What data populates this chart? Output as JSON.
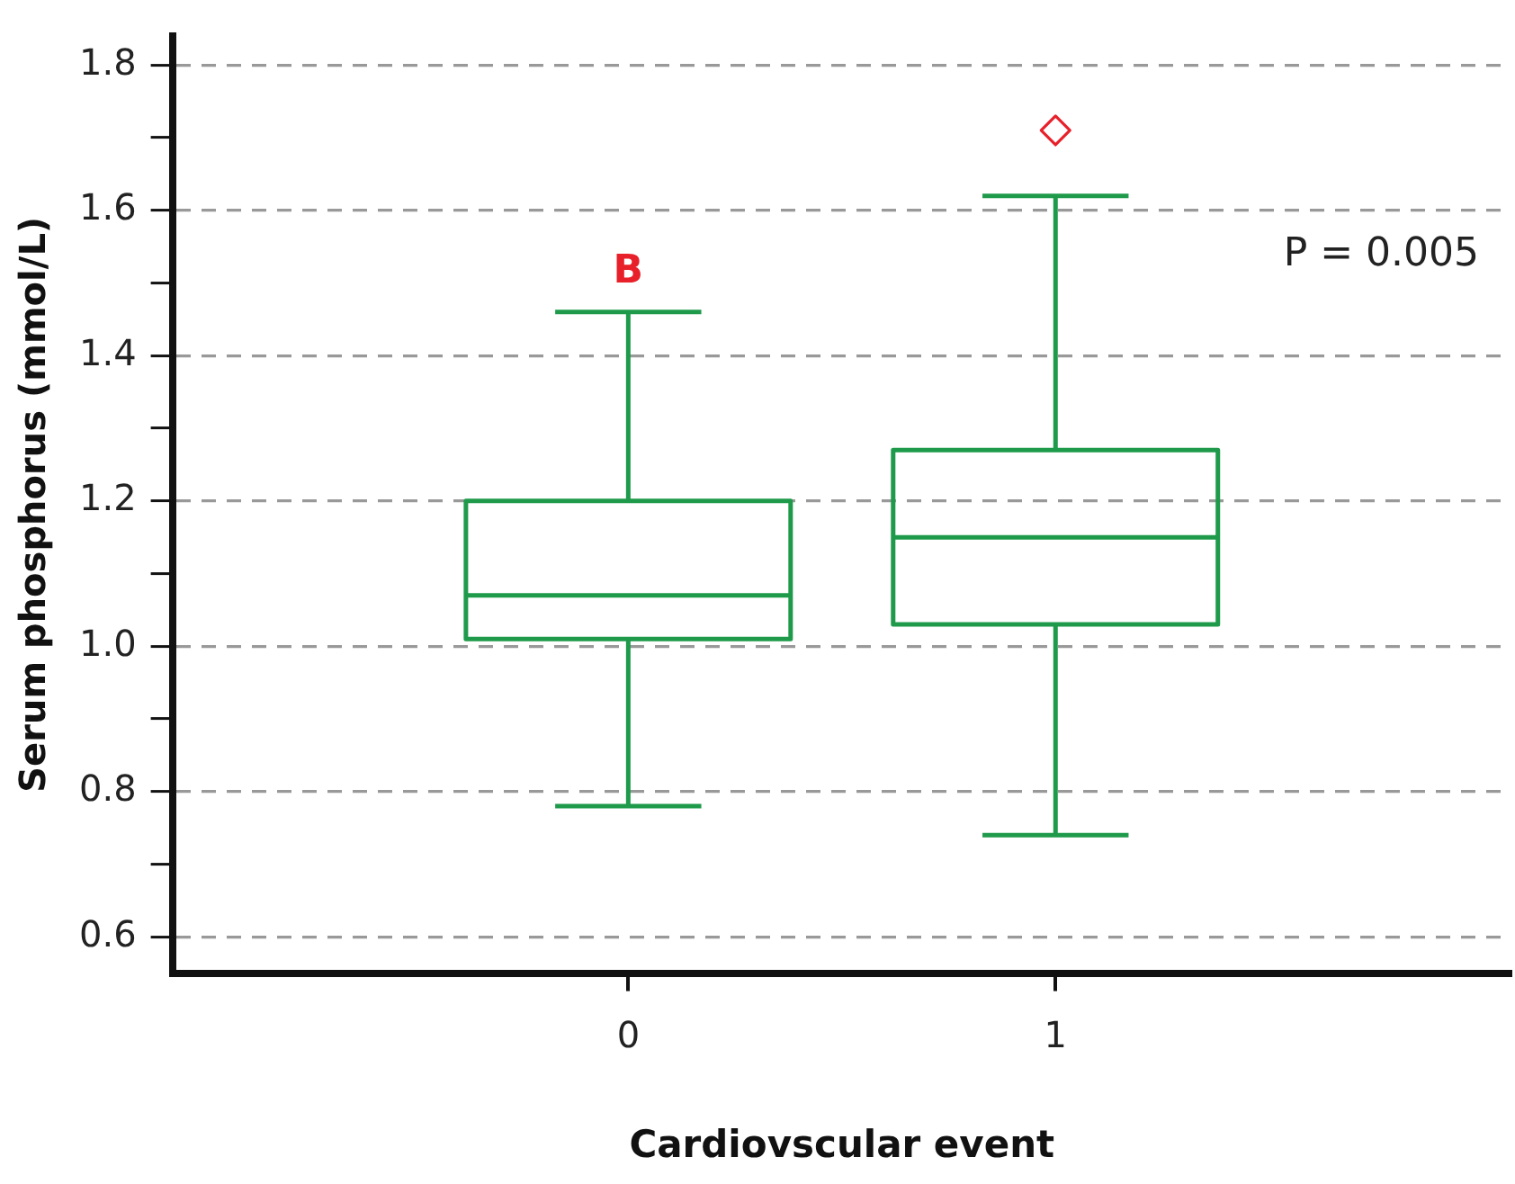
{
  "chart_data": {
    "type": "box",
    "xlabel": "Cardiovscular event",
    "ylabel": "Serum phosphorus (mmol/L)",
    "categories": [
      "0",
      "1"
    ],
    "series": [
      {
        "color": "#1e9a4a",
        "boxes": [
          {
            "low": 0.78,
            "q1": 1.01,
            "median": 1.07,
            "q3": 1.2,
            "high": 1.46
          },
          {
            "low": 0.74,
            "q1": 1.03,
            "median": 1.15,
            "q3": 1.27,
            "high": 1.62,
            "outliers": [
              1.71
            ]
          }
        ]
      }
    ],
    "ylim": [
      0.55,
      1.84
    ],
    "yticks": [
      0.6,
      {
        "value": 0.7,
        "label": null
      },
      0.8,
      {
        "value": 0.9,
        "label": null
      },
      {
        "value": 1.0,
        "label": "1.0"
      },
      {
        "value": 1.1,
        "label": null
      },
      1.2,
      {
        "value": 1.3,
        "label": null
      },
      1.4,
      {
        "value": 1.5,
        "label": null
      },
      1.6,
      {
        "value": 1.7,
        "label": null
      },
      1.8
    ],
    "grid": "y",
    "annotations": [
      "B",
      "P = 0.005"
    ]
  }
}
